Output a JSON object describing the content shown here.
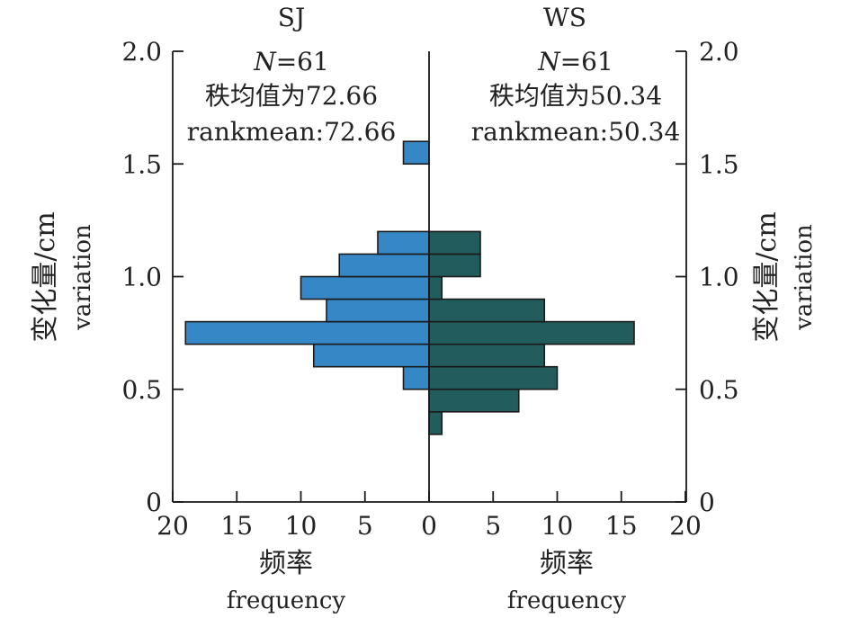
{
  "chart_data": {
    "type": "bar",
    "orientation": "horizontal-back-to-back",
    "bin_width": 0.1,
    "bins": [
      0.3,
      0.4,
      0.5,
      0.6,
      0.7,
      0.8,
      0.9,
      1.0,
      1.1,
      1.2,
      1.5
    ],
    "ylim": [
      0,
      2.0
    ],
    "xlim": [
      0,
      20
    ],
    "y_ticks": [
      "0",
      "0.5",
      "1.0",
      "1.5",
      "2.0"
    ],
    "x_ticks_left": [
      "20",
      "15",
      "10",
      "5",
      "0"
    ],
    "x_ticks_right": [
      "0",
      "5",
      "10",
      "15",
      "20"
    ],
    "grid": false,
    "series": [
      {
        "name": "SJ",
        "side": "left",
        "color": "#3587c5",
        "values": [
          0,
          0,
          2,
          9,
          19,
          8,
          10,
          7,
          4,
          0,
          2
        ],
        "n_label": "=61",
        "rank_cn": "秩均值为72.66",
        "rank_en": "rankmean:72.66"
      },
      {
        "name": "WS",
        "side": "right",
        "color": "#225c5c",
        "values": [
          1,
          7,
          10,
          9,
          16,
          9,
          1,
          4,
          4,
          0,
          0
        ],
        "n_label": "=61",
        "rank_cn": "秩均值为50.34",
        "rank_en": "rankmean:50.34"
      }
    ],
    "ylabel_cn": "变化量/cm",
    "ylabel_en": "variation",
    "xlabel_cn": "频率",
    "xlabel_en": "frequency",
    "n_symbol": "N"
  }
}
